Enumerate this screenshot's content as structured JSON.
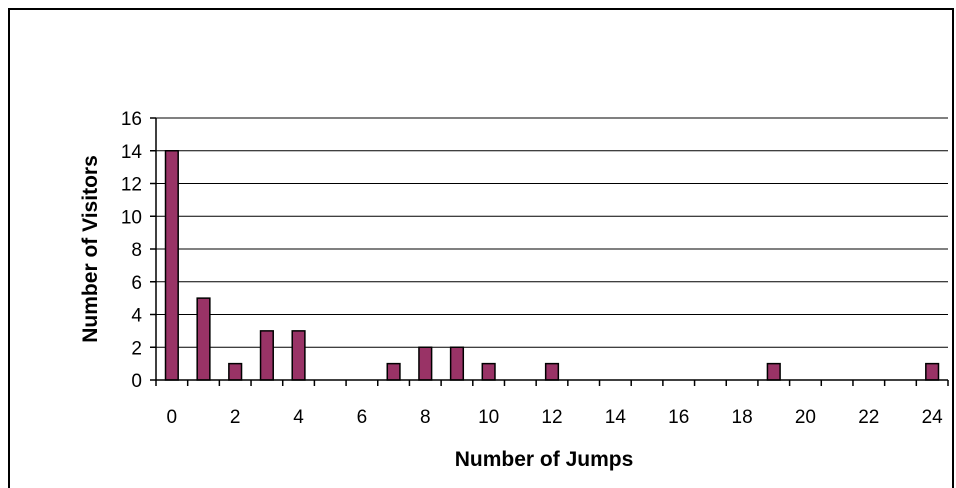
{
  "chart_data": {
    "type": "bar",
    "xlabel": "Number of Jumps",
    "ylabel": "Number of Visitors",
    "x": [
      0,
      1,
      2,
      3,
      4,
      5,
      6,
      7,
      8,
      9,
      10,
      11,
      12,
      13,
      14,
      15,
      16,
      17,
      18,
      19,
      20,
      21,
      22,
      23,
      24
    ],
    "values": [
      14,
      5,
      1,
      3,
      3,
      0,
      0,
      1,
      2,
      2,
      1,
      0,
      1,
      0,
      0,
      0,
      0,
      0,
      0,
      1,
      0,
      0,
      0,
      0,
      1
    ],
    "xticks": [
      "0",
      "2",
      "4",
      "6",
      "8",
      "10",
      "12",
      "14",
      "16",
      "18",
      "20",
      "22",
      "24"
    ],
    "yticks": [
      "0",
      "2",
      "4",
      "6",
      "8",
      "10",
      "12",
      "14",
      "16"
    ],
    "ylim": [
      0,
      16
    ],
    "grid": true,
    "legend": "none",
    "colors": {
      "bar_fill": "#993366",
      "bar_edge": "#000000",
      "grid": "#000000"
    }
  }
}
